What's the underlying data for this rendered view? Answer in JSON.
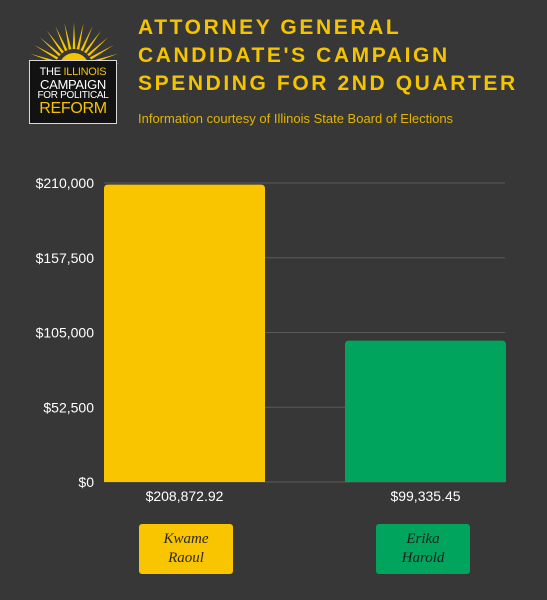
{
  "header": {
    "title_lines": [
      "ATTORNEY GENERAL",
      "CANDIDATE'S CAMPAIGN",
      "SPENDING FOR 2ND QUARTER"
    ],
    "subtitle": "Information courtesy of Illinois State Board of Elections"
  },
  "logo": {
    "line1_a": "THE ",
    "line1_b": "ILLINOIS",
    "line2": "CAMPAIGN",
    "line3": "FOR POLITICAL",
    "line4": "REFORM",
    "icon": "sunburst-icon"
  },
  "colors": {
    "background": "#373737",
    "accent": "#f5c400",
    "kwame": "#f9c400",
    "erika": "#00a45c",
    "gridline": "#5a5a5a"
  },
  "chart_data": {
    "type": "bar",
    "categories": [
      "Kwame Raoul",
      "Erika Harold"
    ],
    "values": [
      208872.92,
      99335.45
    ],
    "value_labels": [
      "$208,872.92",
      "$99,335.45"
    ],
    "candidate_labels": [
      [
        "Kwame",
        "Raoul"
      ],
      [
        "Erika",
        "Harold"
      ]
    ],
    "ylim": [
      0,
      210000
    ],
    "yticks": [
      0,
      52500,
      105000,
      157500,
      210000
    ],
    "ytick_labels": [
      "$0",
      "$52,500",
      "$105,000",
      "$157,500",
      "$210,000"
    ],
    "grid": true,
    "legend": "none"
  }
}
